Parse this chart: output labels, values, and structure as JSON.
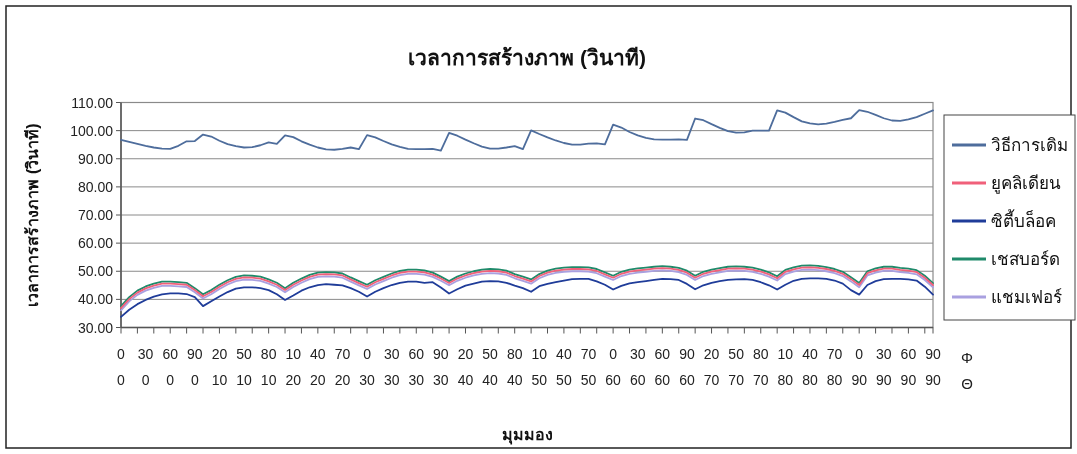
{
  "chart_data": {
    "type": "line",
    "title": "เวลาการสร้างภาพ (วินาที)",
    "xlabel": "มุมมอง",
    "ylabel": "เวลาการสร้างภาพ (วินาที)",
    "categories": [
      "0\n0",
      null,
      null,
      "30\n0",
      null,
      null,
      "60\n0",
      null,
      null,
      "90\n0",
      null,
      null,
      "20\n10",
      null,
      null,
      "50\n10",
      null,
      null,
      "80\n10",
      null,
      null,
      "10\n20",
      null,
      null,
      "40\n20",
      null,
      null,
      "70\n20",
      null,
      null,
      "0\n30",
      null,
      null,
      "30\n30",
      null,
      null,
      "60\n30",
      null,
      null,
      "90\n30",
      null,
      null,
      "20\n40",
      null,
      null,
      "50\n40",
      null,
      null,
      "80\n40",
      null,
      null,
      "10\n50",
      null,
      null,
      "40\n50",
      null,
      null,
      "70\n50",
      null,
      null,
      "0\n60",
      null,
      null,
      "30\n60",
      null,
      null,
      "60\n60",
      null,
      null,
      "90\n60",
      null,
      null,
      "20\n70",
      null,
      null,
      "50\n70",
      null,
      null,
      "80\n70",
      null,
      null,
      "10\n80",
      null,
      null,
      "40\n80",
      null,
      null,
      "70\n80",
      null,
      null,
      "0\n90",
      null,
      null,
      "30\n90",
      null,
      null,
      "60\n90",
      null,
      null,
      "90\n90"
    ],
    "series": [
      {
        "name": "วิธีการเดิม",
        "color": "#4e6d9c",
        "values": [
          96.7,
          96.0,
          95.3,
          94.6,
          94.0,
          93.6,
          93.5,
          94.6,
          96.2,
          96.3,
          98.6,
          97.9,
          96.4,
          95.2,
          94.5,
          94.0,
          94.1,
          94.8,
          95.8,
          95.3,
          98.3,
          97.7,
          96.2,
          95.0,
          94.0,
          93.3,
          93.2,
          93.5,
          94.0,
          93.4,
          98.4,
          97.6,
          96.3,
          95.1,
          94.2,
          93.5,
          93.4,
          93.4,
          93.5,
          92.9,
          99.2,
          98.2,
          96.8,
          95.5,
          94.3,
          93.6,
          93.6,
          94.0,
          94.5,
          93.4,
          100.1,
          98.8,
          97.6,
          96.5,
          95.6,
          95.0,
          95.0,
          95.4,
          95.5,
          95.1,
          102.1,
          101.1,
          99.5,
          98.3,
          97.4,
          96.9,
          96.8,
          96.8,
          96.9,
          96.7,
          104.3,
          103.7,
          102.3,
          101.0,
          99.8,
          99.3,
          99.4,
          100.0,
          100.0,
          100.0,
          107.2,
          106.4,
          104.8,
          103.3,
          102.6,
          102.2,
          102.5,
          103.1,
          103.8,
          104.4,
          107.3,
          106.7,
          105.6,
          104.4,
          103.6,
          103.5,
          104.0,
          104.8,
          106.0,
          107.2
        ]
      },
      {
        "name": "ยูคลิเดียน",
        "color": "#f0607a",
        "values": [
          36.9,
          40.1,
          42.4,
          43.9,
          44.9,
          45.6,
          45.6,
          45.4,
          45.2,
          43.3,
          41.1,
          42.6,
          44.5,
          46.1,
          47.3,
          47.8,
          47.7,
          47.4,
          46.4,
          45.2,
          43.3,
          45.2,
          46.7,
          48.0,
          48.8,
          49.0,
          48.9,
          48.5,
          47.1,
          45.8,
          44.5,
          46.1,
          47.3,
          48.5,
          49.4,
          49.9,
          49.9,
          49.6,
          48.8,
          47.4,
          45.8,
          47.4,
          48.5,
          49.3,
          49.9,
          50.1,
          50.0,
          49.5,
          48.3,
          47.4,
          46.4,
          48.3,
          49.5,
          50.2,
          50.6,
          50.8,
          50.8,
          50.7,
          50.1,
          48.9,
          47.7,
          49.1,
          49.9,
          50.3,
          50.6,
          50.9,
          51.1,
          50.9,
          50.5,
          49.5,
          47.7,
          49.1,
          49.9,
          50.4,
          50.9,
          51.0,
          50.9,
          50.6,
          49.9,
          48.9,
          47.5,
          49.8,
          50.7,
          51.3,
          51.4,
          51.2,
          50.8,
          50.1,
          49.1,
          47.2,
          45.1,
          49.3,
          50.3,
          50.9,
          50.9,
          50.5,
          50.2,
          49.7,
          47.7,
          45.1
        ]
      },
      {
        "name": "ซิตี้บล็อค",
        "color": "#1f3c99",
        "values": [
          33.8,
          36.3,
          38.3,
          39.8,
          41.0,
          41.8,
          42.1,
          42.1,
          41.9,
          40.8,
          37.6,
          39.3,
          41.0,
          42.6,
          43.8,
          44.3,
          44.3,
          44.0,
          43.3,
          41.8,
          39.8,
          41.4,
          43.1,
          44.3,
          45.1,
          45.4,
          45.2,
          45.0,
          44.0,
          42.7,
          41.0,
          42.7,
          44.0,
          45.1,
          45.9,
          46.3,
          46.3,
          45.9,
          46.1,
          44.2,
          42.1,
          43.6,
          44.9,
          45.6,
          46.3,
          46.5,
          46.4,
          45.9,
          44.9,
          44.0,
          42.7,
          44.7,
          45.5,
          46.1,
          46.7,
          47.2,
          47.3,
          47.3,
          46.4,
          45.2,
          43.5,
          44.8,
          45.7,
          46.1,
          46.5,
          46.9,
          47.3,
          47.2,
          46.9,
          45.5,
          43.6,
          45.0,
          45.9,
          46.5,
          46.9,
          47.1,
          47.2,
          46.9,
          46.1,
          45.0,
          43.5,
          45.2,
          46.6,
          47.3,
          47.5,
          47.5,
          47.3,
          46.7,
          45.6,
          43.3,
          41.7,
          45.1,
          46.5,
          47.2,
          47.3,
          47.3,
          47.1,
          46.7,
          44.5,
          41.7
        ]
      },
      {
        "name": "เชสบอร์ด",
        "color": "#1f8a6a",
        "values": [
          37.6,
          40.8,
          43.1,
          44.6,
          45.6,
          46.3,
          46.3,
          46.1,
          45.9,
          44.0,
          41.8,
          43.3,
          45.2,
          46.8,
          48.0,
          48.5,
          48.4,
          48.1,
          47.1,
          45.9,
          44.0,
          45.9,
          47.4,
          48.7,
          49.5,
          49.7,
          49.6,
          49.2,
          47.8,
          46.5,
          45.2,
          46.8,
          48.0,
          49.2,
          50.1,
          50.6,
          50.6,
          50.3,
          49.5,
          48.1,
          46.5,
          48.1,
          49.2,
          50.0,
          50.6,
          50.8,
          50.7,
          50.2,
          49.0,
          48.1,
          47.1,
          49.0,
          50.2,
          50.9,
          51.3,
          51.5,
          51.5,
          51.4,
          50.8,
          49.6,
          48.4,
          49.8,
          50.6,
          51.0,
          51.3,
          51.6,
          51.8,
          51.6,
          51.2,
          50.2,
          48.4,
          49.8,
          50.6,
          51.1,
          51.6,
          51.7,
          51.6,
          51.3,
          50.6,
          49.6,
          48.2,
          50.5,
          51.4,
          52.0,
          52.1,
          51.9,
          51.5,
          50.8,
          49.8,
          47.9,
          45.8,
          50.0,
          51.0,
          51.6,
          51.6,
          51.2,
          50.9,
          50.4,
          48.4,
          45.8
        ]
      },
      {
        "name": "แชมเฟอร์",
        "color": "#a9a0e0",
        "values": [
          36.1,
          39.3,
          41.6,
          43.1,
          44.1,
          44.8,
          44.8,
          44.6,
          44.4,
          42.5,
          40.3,
          41.8,
          43.7,
          45.3,
          46.5,
          47.0,
          46.9,
          46.6,
          45.6,
          44.4,
          42.5,
          44.4,
          45.9,
          47.2,
          48.0,
          48.2,
          48.1,
          47.7,
          46.3,
          45.0,
          43.7,
          45.3,
          46.5,
          47.7,
          48.6,
          49.1,
          49.1,
          48.8,
          48.0,
          46.6,
          45.0,
          46.6,
          47.7,
          48.5,
          49.1,
          49.3,
          49.2,
          48.7,
          47.5,
          46.6,
          45.6,
          47.5,
          48.7,
          49.4,
          49.8,
          50.0,
          50.0,
          49.9,
          49.3,
          48.1,
          46.9,
          48.3,
          49.1,
          49.5,
          49.8,
          50.1,
          50.3,
          50.1,
          49.7,
          48.7,
          46.9,
          48.3,
          49.1,
          49.6,
          50.1,
          50.2,
          50.1,
          49.8,
          49.1,
          48.1,
          46.7,
          49.0,
          49.9,
          50.5,
          50.6,
          50.4,
          50.0,
          49.3,
          48.3,
          46.4,
          44.3,
          48.5,
          49.5,
          50.1,
          50.1,
          49.7,
          49.4,
          48.9,
          46.9,
          44.3
        ]
      }
    ],
    "ylim": [
      30,
      110
    ],
    "yticks": [
      {
        "value": 30,
        "label": "30.00"
      },
      {
        "value": 40,
        "label": "40.00"
      },
      {
        "value": 50,
        "label": "50.00"
      },
      {
        "value": 60,
        "label": "60.00"
      },
      {
        "value": 70,
        "label": "70.00"
      },
      {
        "value": 80,
        "label": "80.00"
      },
      {
        "value": 90,
        "label": "90.00"
      },
      {
        "value": 100,
        "label": "100.00"
      },
      {
        "value": 110,
        "label": "110.00"
      }
    ],
    "grid": "y",
    "legend": "right",
    "marker": "none",
    "line_style": "solid",
    "annotations": [
      "Φ",
      "Θ"
    ]
  }
}
